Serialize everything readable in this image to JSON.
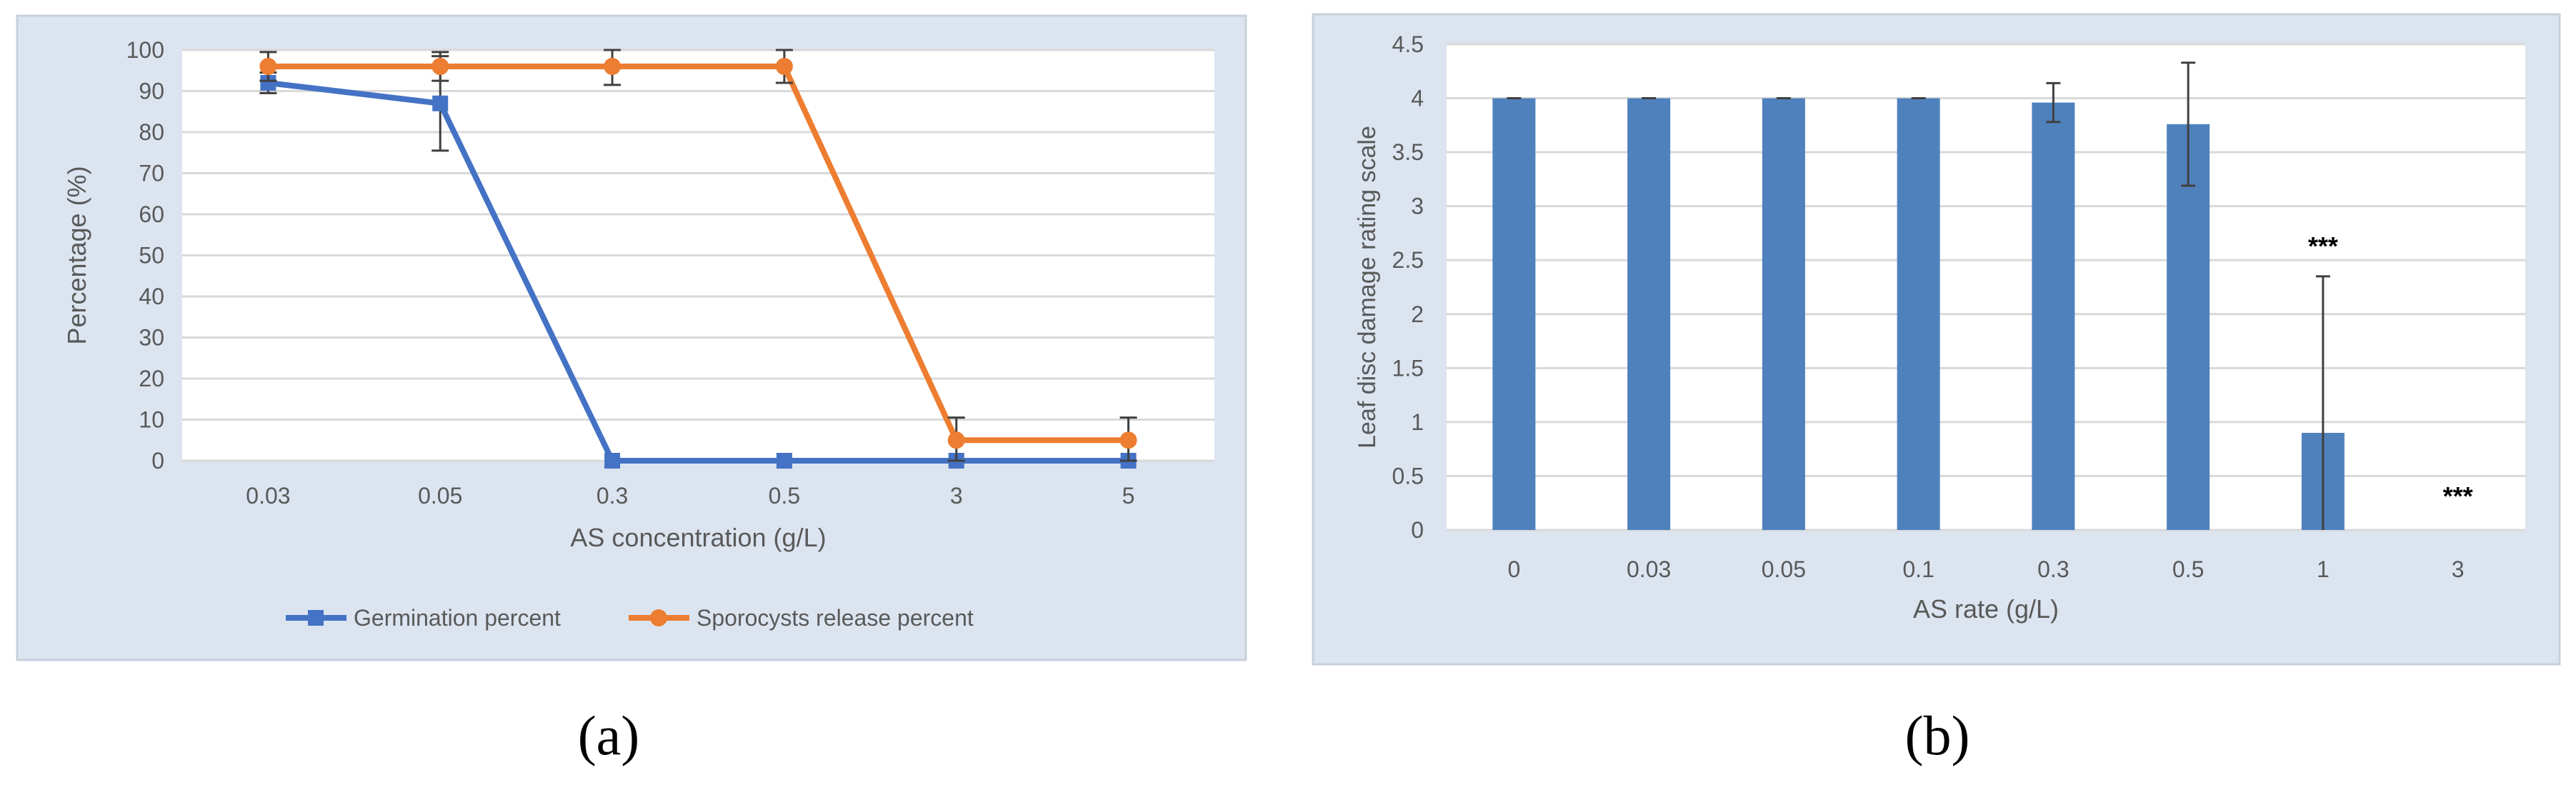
{
  "colors": {
    "panel_bg": "#dce4f0",
    "panel_border": "#c8d0dc",
    "plot_bg": "#ffffff",
    "grid": "#d9d9d9",
    "axis_text": "#595959",
    "germination": "#4472c4",
    "sporocysts": "#ed7d31",
    "bar": "#4f81bd",
    "error_bar": "#404040"
  },
  "panels": {
    "a": {
      "caption": "(a)"
    },
    "b": {
      "caption": "(b)"
    }
  },
  "chart_data": [
    {
      "type": "line",
      "categories": [
        "0.03",
        "0.05",
        "0.3",
        "0.5",
        "3",
        "5"
      ],
      "ylim": [
        0,
        100
      ],
      "yticks": [
        0,
        10,
        20,
        30,
        40,
        50,
        60,
        70,
        80,
        90,
        100
      ],
      "xlabel": "AS concentration (g/L)",
      "ylabel": "Percentage (%)",
      "grid": true,
      "legend_position": "bottom",
      "series": [
        {
          "name": "Germination percent",
          "color": "#4472c4",
          "marker": "square",
          "values": [
            92,
            87,
            0,
            0,
            0,
            0
          ],
          "errors": [
            2.5,
            11.5,
            0,
            0,
            0,
            0
          ]
        },
        {
          "name": "Sporocysts release percent",
          "color": "#ed7d31",
          "marker": "circle",
          "values": [
            96,
            96,
            96,
            96,
            5,
            5
          ],
          "errors": [
            3.5,
            3.5,
            4.5,
            4,
            5.5,
            5.5
          ]
        }
      ]
    },
    {
      "type": "bar",
      "categories": [
        "0",
        "0.03",
        "0.05",
        "0.1",
        "0.3",
        "0.5",
        "1",
        "3"
      ],
      "values": [
        4.0,
        4.0,
        4.0,
        4.0,
        3.96,
        3.76,
        0.9,
        0
      ],
      "errors": [
        0,
        0,
        0,
        0,
        0.18,
        0.57,
        1.45,
        0
      ],
      "annotations": [
        "",
        "",
        "",
        "",
        "",
        "",
        "***",
        "***"
      ],
      "ylim": [
        0,
        4.5
      ],
      "yticks": [
        "0",
        "0.5",
        "1",
        "1.5",
        "2",
        "2.5",
        "3",
        "3.5",
        "4",
        "4.5"
      ],
      "xlabel": "AS rate (g/L)",
      "ylabel": "Leaf disc damage rating scale",
      "grid": true
    }
  ]
}
